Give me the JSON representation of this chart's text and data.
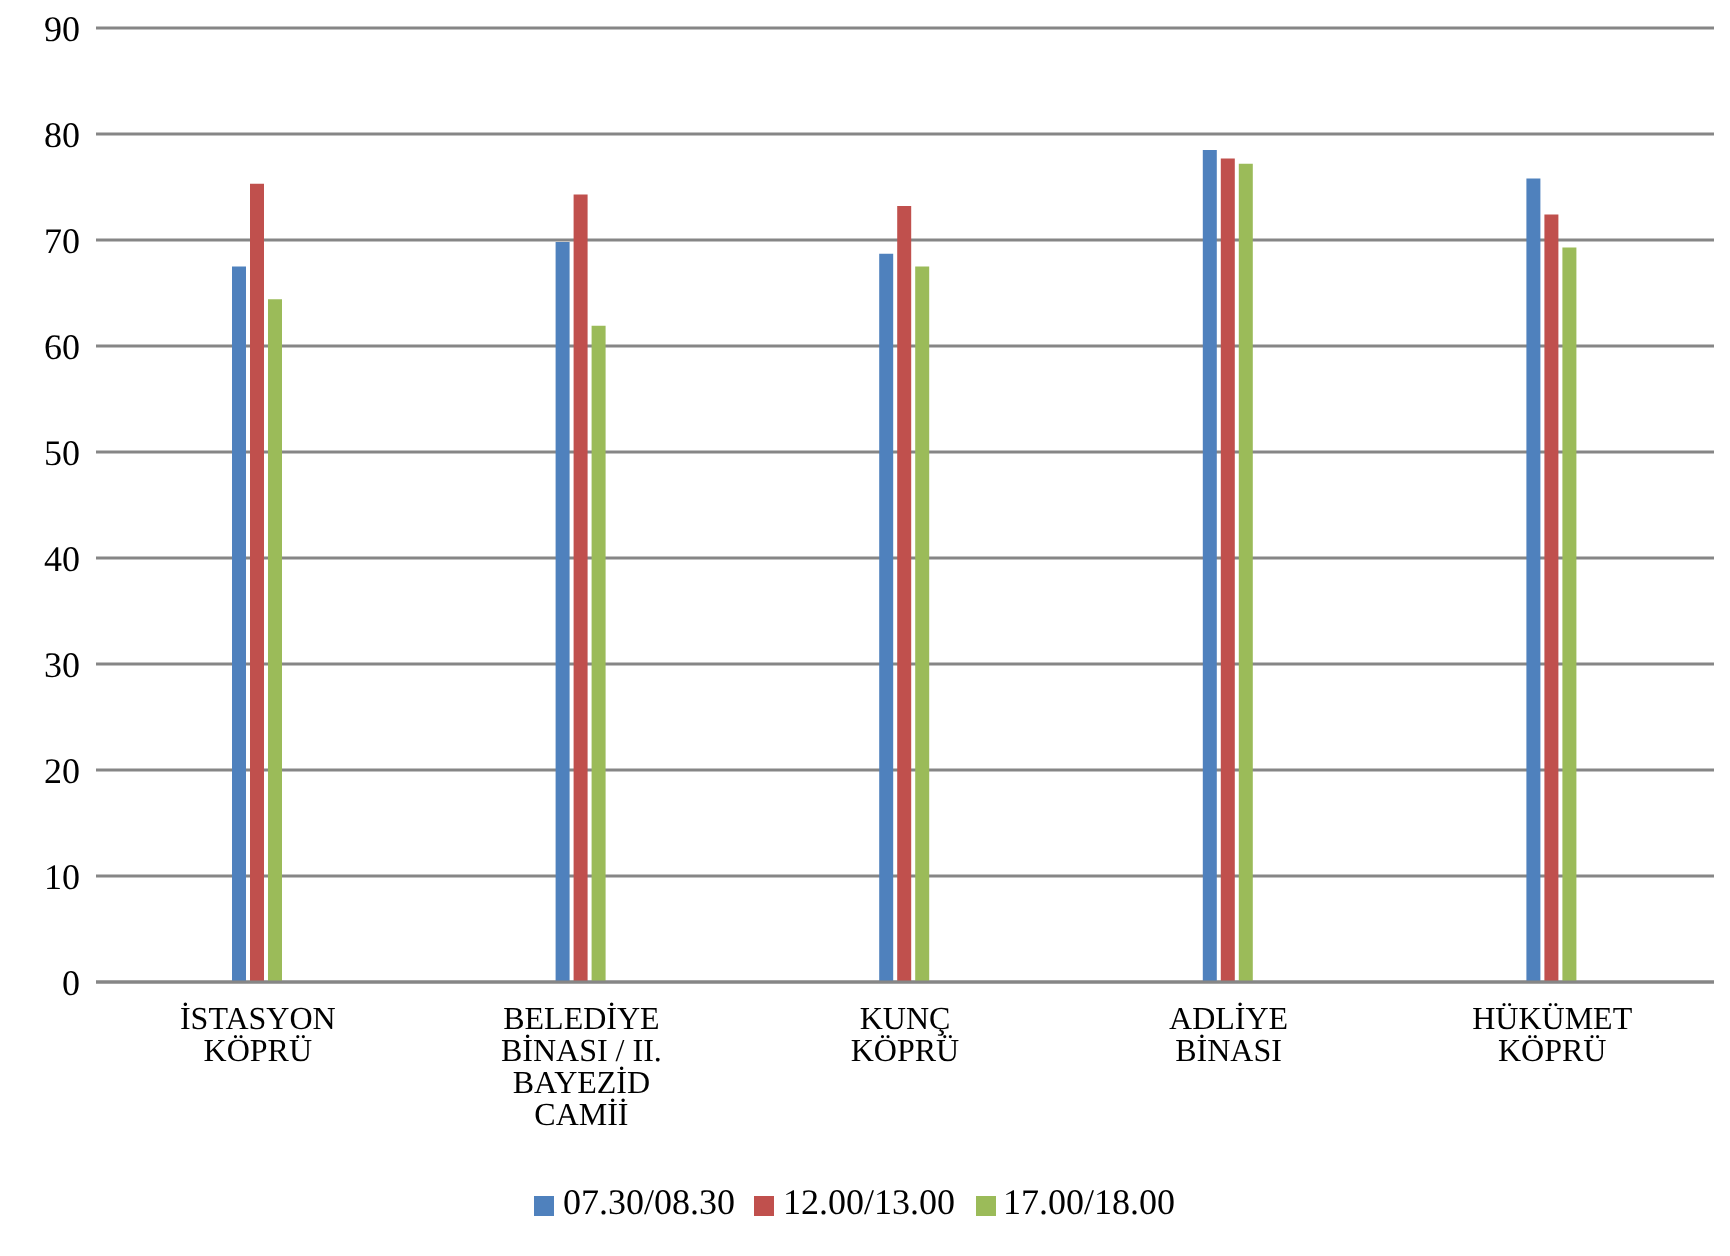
{
  "chart_data": {
    "type": "bar",
    "categories": [
      "İSTASYON KÖPRÜ",
      "BELEDİYE BİNASI / II. BAYEZİD CAMİİ",
      "KUNÇ KÖPRÜ",
      "ADLİYE BİNASI",
      "HÜKÜMET KÖPRÜ"
    ],
    "series": [
      {
        "name": "07.30/08.30",
        "color": "#4f81bd",
        "values": [
          67.5,
          69.8,
          68.7,
          78.5,
          75.8
        ]
      },
      {
        "name": "12.00/13.00",
        "color": "#c0504d",
        "values": [
          75.3,
          74.3,
          73.2,
          77.7,
          72.4
        ]
      },
      {
        "name": "17.00/18.00",
        "color": "#9bbb59",
        "values": [
          64.4,
          61.9,
          67.5,
          77.2,
          69.3
        ]
      }
    ],
    "ylim": [
      0,
      90
    ],
    "yticks": [
      0,
      10,
      20,
      30,
      40,
      50,
      60,
      70,
      80,
      90
    ],
    "grid": "y",
    "legend": "bottom"
  }
}
